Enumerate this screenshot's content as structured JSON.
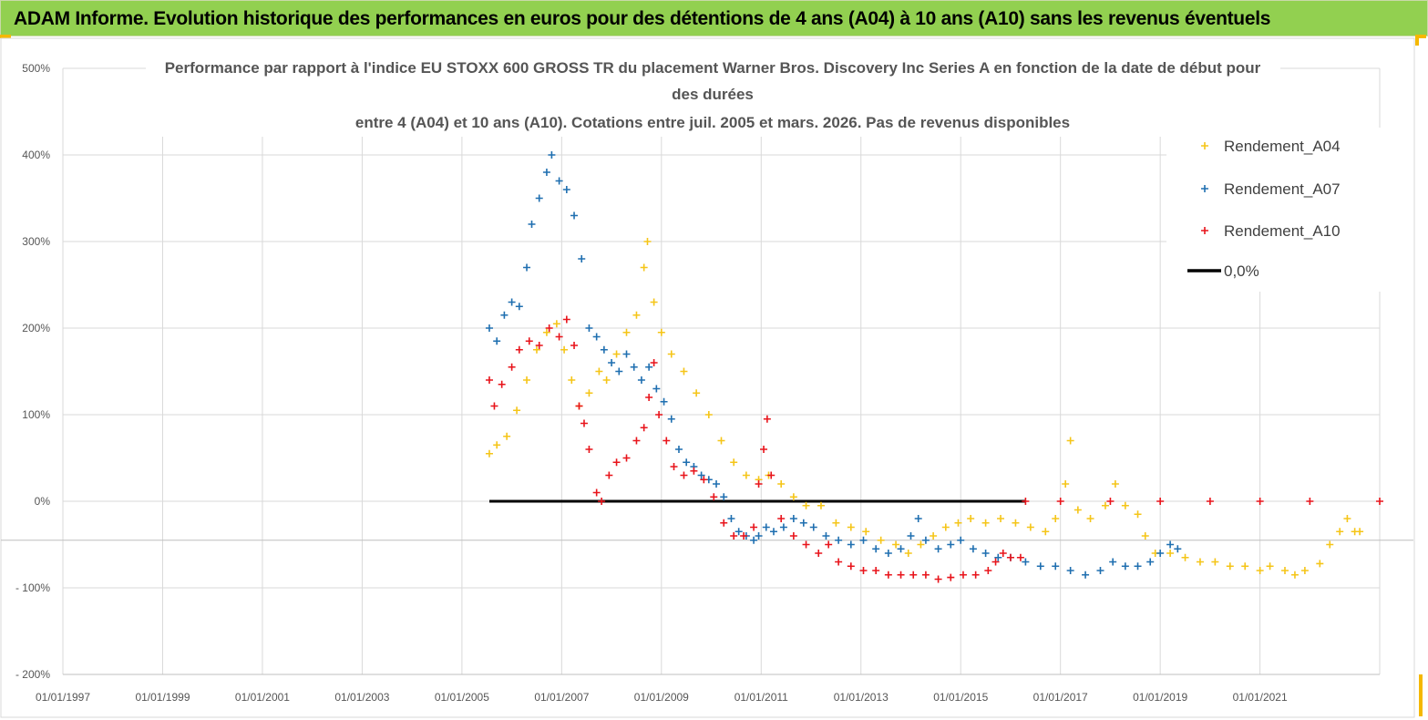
{
  "header": {
    "banner": "ADAM Informe. Evolution historique des performances en euros pour des détentions de 4 ans (A04) à 10 ans (A10) sans les revenus éventuels"
  },
  "colors": {
    "A04": "#f5c518",
    "A07": "#1f6fb0",
    "A10": "#e8141b",
    "zero": "#000000",
    "banner": "#92d050"
  },
  "chart_data": {
    "type": "scatter",
    "title_lines": [
      "Performance par rapport à l'indice EU STOXX 600 GROSS TR  du placement Warner Bros. Discovery Inc Series A en fonction de la date de début pour",
      "des durées",
      "entre 4 (A04) et 10 ans (A10). Cotations entre juil. 2005 et mars. 2026. Pas de revenus disponibles"
    ],
    "y_ticks": [
      "500%",
      "400%",
      "300%",
      "200%",
      "100%",
      "0%",
      "- 100%",
      "- 200%"
    ],
    "x_ticks": [
      "01/01/1997",
      "01/01/1999",
      "01/01/2001",
      "01/01/2003",
      "01/01/2005",
      "01/01/2007",
      "01/01/2009",
      "01/01/2011",
      "01/01/2013",
      "01/01/2015",
      "01/01/2017",
      "01/01/2019",
      "01/01/2021"
    ],
    "ylim": [
      -200,
      500
    ],
    "xlim": [
      1997.0,
      2023.4
    ],
    "grid": true,
    "legend_position": "top-right",
    "series": [
      {
        "name": "Rendement_A04",
        "marker": "+",
        "points": [
          [
            2005.55,
            55
          ],
          [
            2005.7,
            65
          ],
          [
            2005.9,
            75
          ],
          [
            2006.1,
            105
          ],
          [
            2006.3,
            140
          ],
          [
            2006.5,
            175
          ],
          [
            2006.7,
            195
          ],
          [
            2006.9,
            205
          ],
          [
            2007.05,
            175
          ],
          [
            2007.2,
            140
          ],
          [
            2007.35,
            110
          ],
          [
            2007.55,
            125
          ],
          [
            2007.75,
            150
          ],
          [
            2007.9,
            140
          ],
          [
            2008.1,
            170
          ],
          [
            2008.3,
            195
          ],
          [
            2008.5,
            215
          ],
          [
            2008.65,
            270
          ],
          [
            2008.72,
            300
          ],
          [
            2008.85,
            230
          ],
          [
            2009.0,
            195
          ],
          [
            2009.2,
            170
          ],
          [
            2009.45,
            150
          ],
          [
            2009.7,
            125
          ],
          [
            2009.95,
            100
          ],
          [
            2010.2,
            70
          ],
          [
            2010.45,
            45
          ],
          [
            2010.7,
            30
          ],
          [
            2010.95,
            25
          ],
          [
            2011.15,
            30
          ],
          [
            2011.4,
            20
          ],
          [
            2011.65,
            5
          ],
          [
            2011.9,
            -5
          ],
          [
            2012.2,
            -5
          ],
          [
            2012.5,
            -25
          ],
          [
            2012.8,
            -30
          ],
          [
            2013.1,
            -35
          ],
          [
            2013.4,
            -45
          ],
          [
            2013.7,
            -50
          ],
          [
            2013.95,
            -60
          ],
          [
            2014.2,
            -50
          ],
          [
            2014.45,
            -40
          ],
          [
            2014.7,
            -30
          ],
          [
            2014.95,
            -25
          ],
          [
            2015.2,
            -20
          ],
          [
            2015.5,
            -25
          ],
          [
            2015.8,
            -20
          ],
          [
            2016.1,
            -25
          ],
          [
            2016.4,
            -30
          ],
          [
            2016.7,
            -35
          ],
          [
            2016.9,
            -20
          ],
          [
            2017.1,
            20
          ],
          [
            2017.2,
            70
          ],
          [
            2017.35,
            -10
          ],
          [
            2017.6,
            -20
          ],
          [
            2017.9,
            -5
          ],
          [
            2018.1,
            20
          ],
          [
            2018.3,
            -5
          ],
          [
            2018.55,
            -15
          ],
          [
            2018.7,
            -40
          ],
          [
            2018.9,
            -60
          ],
          [
            2019.2,
            -60
          ],
          [
            2019.5,
            -65
          ],
          [
            2019.8,
            -70
          ],
          [
            2020.1,
            -70
          ],
          [
            2020.4,
            -75
          ],
          [
            2020.7,
            -75
          ],
          [
            2021.0,
            -80
          ],
          [
            2021.2,
            -75
          ],
          [
            2021.5,
            -80
          ],
          [
            2021.7,
            -85
          ],
          [
            2021.9,
            -80
          ],
          [
            2022.2,
            -72
          ],
          [
            2022.4,
            -50
          ],
          [
            2022.6,
            -35
          ],
          [
            2022.75,
            -20
          ],
          [
            2022.9,
            -35
          ],
          [
            2023.0,
            -35
          ]
        ]
      },
      {
        "name": "Rendement_A07",
        "marker": "+",
        "points": [
          [
            2005.55,
            200
          ],
          [
            2005.7,
            185
          ],
          [
            2005.85,
            215
          ],
          [
            2006.0,
            230
          ],
          [
            2006.15,
            225
          ],
          [
            2006.3,
            270
          ],
          [
            2006.4,
            320
          ],
          [
            2006.55,
            350
          ],
          [
            2006.7,
            380
          ],
          [
            2006.8,
            400
          ],
          [
            2006.95,
            370
          ],
          [
            2007.1,
            360
          ],
          [
            2007.25,
            330
          ],
          [
            2007.4,
            280
          ],
          [
            2007.55,
            200
          ],
          [
            2007.7,
            190
          ],
          [
            2007.85,
            175
          ],
          [
            2008.0,
            160
          ],
          [
            2008.15,
            150
          ],
          [
            2008.3,
            170
          ],
          [
            2008.45,
            155
          ],
          [
            2008.6,
            140
          ],
          [
            2008.75,
            155
          ],
          [
            2008.9,
            130
          ],
          [
            2009.05,
            115
          ],
          [
            2009.2,
            95
          ],
          [
            2009.35,
            60
          ],
          [
            2009.5,
            45
          ],
          [
            2009.65,
            40
          ],
          [
            2009.8,
            30
          ],
          [
            2009.95,
            25
          ],
          [
            2010.1,
            20
          ],
          [
            2010.25,
            5
          ],
          [
            2010.4,
            -20
          ],
          [
            2010.55,
            -35
          ],
          [
            2010.7,
            -40
          ],
          [
            2010.85,
            -45
          ],
          [
            2010.95,
            -40
          ],
          [
            2011.1,
            -30
          ],
          [
            2011.25,
            -35
          ],
          [
            2011.45,
            -30
          ],
          [
            2011.65,
            -20
          ],
          [
            2011.85,
            -25
          ],
          [
            2012.05,
            -30
          ],
          [
            2012.3,
            -40
          ],
          [
            2012.55,
            -45
          ],
          [
            2012.8,
            -50
          ],
          [
            2013.05,
            -45
          ],
          [
            2013.3,
            -55
          ],
          [
            2013.55,
            -60
          ],
          [
            2013.8,
            -55
          ],
          [
            2014.0,
            -40
          ],
          [
            2014.15,
            -20
          ],
          [
            2014.3,
            -45
          ],
          [
            2014.55,
            -55
          ],
          [
            2014.8,
            -50
          ],
          [
            2015.0,
            -45
          ],
          [
            2015.25,
            -55
          ],
          [
            2015.5,
            -60
          ],
          [
            2015.75,
            -65
          ],
          [
            2016.0,
            -65
          ],
          [
            2016.3,
            -70
          ],
          [
            2016.6,
            -75
          ],
          [
            2016.9,
            -75
          ],
          [
            2017.2,
            -80
          ],
          [
            2017.5,
            -85
          ],
          [
            2017.8,
            -80
          ],
          [
            2018.05,
            -70
          ],
          [
            2018.3,
            -75
          ],
          [
            2018.55,
            -75
          ],
          [
            2018.8,
            -70
          ],
          [
            2019.0,
            -60
          ],
          [
            2019.2,
            -50
          ],
          [
            2019.35,
            -55
          ]
        ]
      },
      {
        "name": "Rendement_A10",
        "marker": "+",
        "points": [
          [
            2005.55,
            140
          ],
          [
            2005.65,
            110
          ],
          [
            2005.8,
            135
          ],
          [
            2006.0,
            155
          ],
          [
            2006.15,
            175
          ],
          [
            2006.35,
            185
          ],
          [
            2006.55,
            180
          ],
          [
            2006.75,
            200
          ],
          [
            2006.95,
            190
          ],
          [
            2007.1,
            210
          ],
          [
            2007.25,
            180
          ],
          [
            2007.35,
            110
          ],
          [
            2007.45,
            90
          ],
          [
            2007.55,
            60
          ],
          [
            2007.7,
            10
          ],
          [
            2007.8,
            0
          ],
          [
            2007.95,
            30
          ],
          [
            2008.1,
            45
          ],
          [
            2008.3,
            50
          ],
          [
            2008.5,
            70
          ],
          [
            2008.65,
            85
          ],
          [
            2008.75,
            120
          ],
          [
            2008.85,
            160
          ],
          [
            2008.95,
            100
          ],
          [
            2009.1,
            70
          ],
          [
            2009.25,
            40
          ],
          [
            2009.45,
            30
          ],
          [
            2009.65,
            35
          ],
          [
            2009.85,
            25
          ],
          [
            2010.05,
            5
          ],
          [
            2010.25,
            -25
          ],
          [
            2010.45,
            -40
          ],
          [
            2010.65,
            -40
          ],
          [
            2010.85,
            -30
          ],
          [
            2010.95,
            20
          ],
          [
            2011.05,
            60
          ],
          [
            2011.12,
            95
          ],
          [
            2011.2,
            30
          ],
          [
            2011.4,
            -20
          ],
          [
            2011.65,
            -40
          ],
          [
            2011.9,
            -50
          ],
          [
            2012.15,
            -60
          ],
          [
            2012.35,
            -50
          ],
          [
            2012.55,
            -70
          ],
          [
            2012.8,
            -75
          ],
          [
            2013.05,
            -80
          ],
          [
            2013.3,
            -80
          ],
          [
            2013.55,
            -85
          ],
          [
            2013.8,
            -85
          ],
          [
            2014.05,
            -85
          ],
          [
            2014.3,
            -85
          ],
          [
            2014.55,
            -90
          ],
          [
            2014.8,
            -88
          ],
          [
            2015.05,
            -85
          ],
          [
            2015.3,
            -85
          ],
          [
            2015.55,
            -80
          ],
          [
            2015.7,
            -70
          ],
          [
            2015.85,
            -60
          ],
          [
            2016.0,
            -65
          ],
          [
            2016.2,
            -65
          ],
          [
            2016.3,
            0
          ],
          [
            2017.0,
            0
          ],
          [
            2018.0,
            0
          ],
          [
            2019.0,
            0
          ],
          [
            2020.0,
            0
          ],
          [
            2021.0,
            0
          ],
          [
            2022.0,
            0
          ],
          [
            2023.4,
            0
          ]
        ]
      },
      {
        "name": "0,0%",
        "marker": "line",
        "points": [
          [
            2005.55,
            0
          ],
          [
            2016.3,
            0
          ]
        ]
      }
    ]
  }
}
